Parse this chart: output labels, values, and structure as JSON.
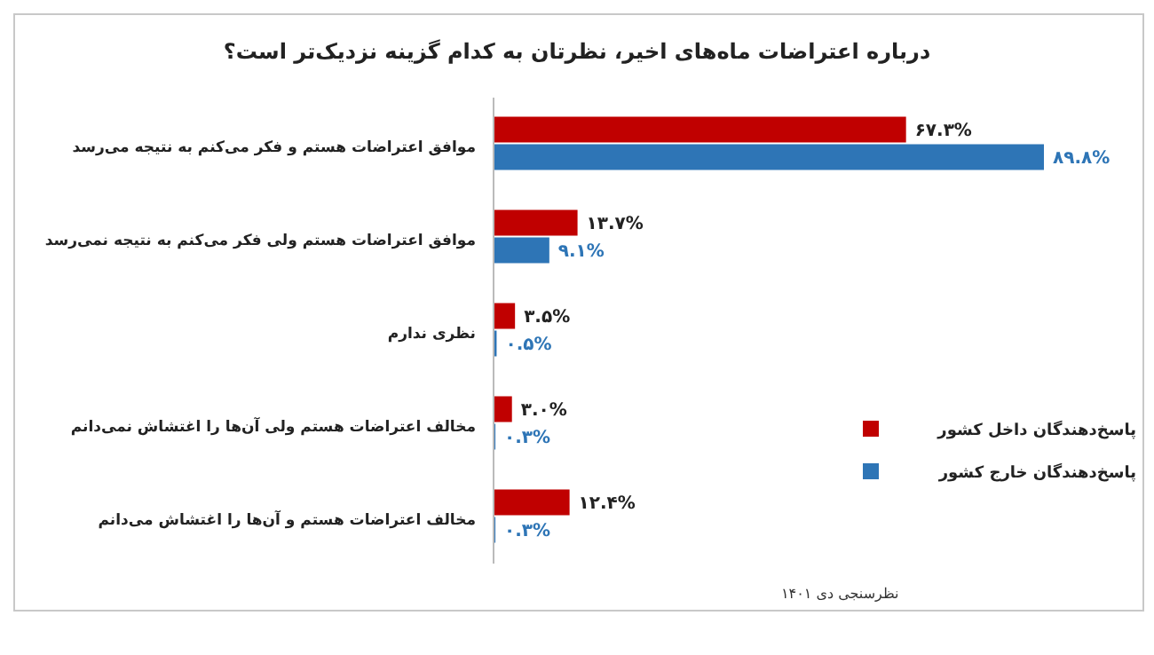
{
  "chart_data": {
    "type": "bar",
    "orientation": "horizontal",
    "title": "درباره اعتراضات ماه‌های اخیر، نظرتان به کدام گزینه نزدیک‌تر است؟",
    "categories": [
      "موافق اعتراضات هستم و فکر می‌کنم به نتیجه می‌رسد",
      "موافق اعتراضات هستم ولی فکر می‌کنم به نتیجه نمی‌رسد",
      "نظری ندارم",
      "مخالف اعتراضات هستم ولی آن‌ها را اغتشاش نمی‌دانم",
      "مخالف اعتراضات هستم و آن‌ها را اغتشاش می‌دانم"
    ],
    "series": [
      {
        "name": "پاسخ‌دهندگان داخل کشور",
        "color": "#c00000",
        "values": [
          67.3,
          13.7,
          3.5,
          3.0,
          12.4
        ],
        "value_labels": [
          "۶۷.۳%",
          "۱۳.۷%",
          "۳.۵%",
          "۳.۰%",
          "۱۲.۴%"
        ]
      },
      {
        "name": "پاسخ‌دهندگان خارج کشور",
        "color": "#2e75b6",
        "values": [
          89.8,
          9.1,
          0.5,
          0.3,
          0.3
        ],
        "value_labels": [
          "۸۹.۸%",
          "۹.۱%",
          "۰.۵%",
          "۰.۳%",
          "۰.۳%"
        ]
      }
    ],
    "legend": "right",
    "annotations": [
      "نظرسنجی دی ۱۴۰۱"
    ]
  }
}
